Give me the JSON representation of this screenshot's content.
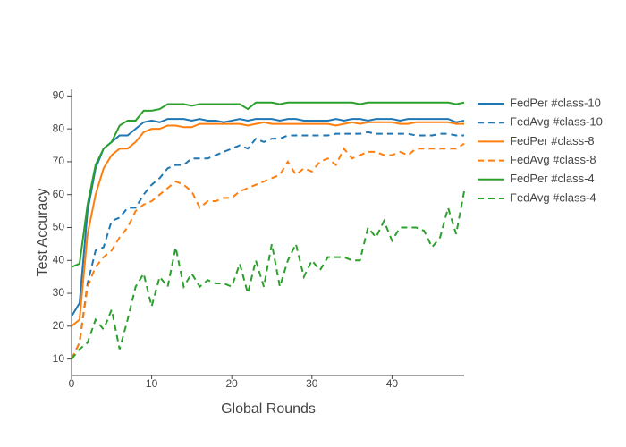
{
  "chart_data": {
    "type": "line",
    "x_label": "Global Rounds",
    "y_label": "Test Accuracy",
    "x": [
      0,
      1,
      2,
      3,
      4,
      5,
      6,
      7,
      8,
      9,
      10,
      11,
      12,
      13,
      14,
      15,
      16,
      17,
      18,
      19,
      20,
      21,
      22,
      23,
      24,
      25,
      26,
      27,
      28,
      29,
      30,
      31,
      32,
      33,
      34,
      35,
      36,
      37,
      38,
      39,
      40,
      41,
      42,
      43,
      44,
      45,
      46,
      47,
      48,
      49
    ],
    "xlim": [
      0,
      49
    ],
    "xticks": [
      0,
      10,
      20,
      30,
      40
    ],
    "ylim": [
      5,
      92
    ],
    "yticks": [
      10,
      20,
      30,
      40,
      50,
      60,
      70,
      80,
      90
    ],
    "grid": false,
    "legend": "right",
    "series": [
      {
        "name": "FedPer #class-10",
        "color": "#1f77b4",
        "dash": false,
        "values": [
          23,
          27,
          55,
          68,
          74,
          76,
          78,
          78,
          80,
          82,
          82.5,
          82,
          83,
          83,
          83,
          82.5,
          83,
          82.5,
          82.5,
          82,
          82.5,
          83,
          82.5,
          83,
          83,
          83,
          82.5,
          83,
          83,
          82.5,
          82.5,
          82.5,
          82.5,
          83,
          82.5,
          83,
          83,
          82.5,
          83,
          83,
          83,
          82.5,
          83,
          83,
          83,
          83,
          83,
          83,
          82,
          82.5
        ]
      },
      {
        "name": "FedAvg #class-10",
        "color": "#1f77b4",
        "dash": true,
        "values": [
          10,
          15,
          33,
          43,
          44,
          52,
          53,
          56,
          56,
          60,
          63,
          65,
          68,
          69,
          69,
          71,
          71,
          71,
          72,
          73,
          74,
          75,
          74,
          77,
          76,
          77,
          77,
          78,
          78,
          78,
          78,
          78,
          78,
          78.5,
          78.5,
          78.5,
          78.5,
          79,
          78.5,
          78.5,
          78.5,
          78.5,
          78.5,
          78,
          78,
          78,
          78.5,
          78.5,
          78,
          78
        ]
      },
      {
        "name": "FedPer #class-8",
        "color": "#ff7f0e",
        "dash": false,
        "values": [
          20,
          22,
          48,
          60,
          68,
          72,
          74,
          74,
          76,
          79,
          80,
          80,
          81,
          81,
          80.5,
          80.5,
          81.5,
          81.5,
          81.5,
          81.5,
          81.5,
          81.5,
          81,
          81.5,
          82,
          81.5,
          81.5,
          81.5,
          81.5,
          81.5,
          81.5,
          81.5,
          81.5,
          81,
          81.5,
          82,
          81.5,
          82,
          82,
          82,
          82,
          81.5,
          81.5,
          82,
          82,
          82,
          82,
          82,
          81.5,
          81.5
        ]
      },
      {
        "name": "FedAvg #class-8",
        "color": "#ff7f0e",
        "dash": true,
        "values": [
          10,
          15,
          32,
          38,
          41,
          43,
          47,
          50,
          55,
          57,
          58,
          60,
          62,
          64,
          63,
          61,
          56,
          58,
          58,
          59,
          59,
          61,
          62,
          63,
          64,
          65,
          66,
          70,
          66,
          68,
          67,
          70,
          71,
          69,
          74,
          71,
          72,
          73,
          73,
          72,
          72,
          73,
          72,
          74,
          74,
          74,
          74,
          74,
          74,
          75.5
        ]
      },
      {
        "name": "FedPer #class-4",
        "color": "#2ca02c",
        "dash": false,
        "values": [
          38,
          39,
          57,
          69,
          74,
          76,
          81,
          82.5,
          82.5,
          85.5,
          85.5,
          86,
          87.5,
          87.5,
          87.5,
          87,
          87.5,
          87.5,
          87.5,
          87.5,
          87.5,
          87.5,
          86,
          88,
          88,
          88,
          87.5,
          88,
          88,
          88,
          88,
          88,
          88,
          88,
          88,
          88,
          87.5,
          88,
          88,
          88,
          88,
          88,
          88,
          88,
          88,
          88,
          88,
          88,
          87.5,
          88
        ]
      },
      {
        "name": "FedAvg #class-4",
        "color": "#2ca02c",
        "dash": true,
        "values": [
          10,
          13,
          15,
          22,
          19,
          25,
          13,
          22,
          32,
          36,
          26,
          35,
          32,
          44,
          32,
          36,
          32,
          34,
          33,
          33,
          32,
          39,
          30,
          40,
          32,
          45,
          32,
          40,
          45,
          35,
          40,
          37,
          41,
          41,
          41,
          40,
          40,
          50,
          47,
          52,
          46,
          50,
          50,
          50,
          49,
          44,
          47,
          56,
          48,
          61
        ]
      }
    ]
  }
}
